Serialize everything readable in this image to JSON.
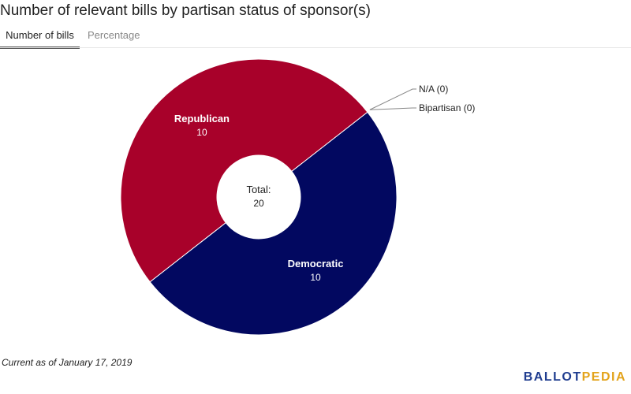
{
  "title": "Number of relevant bills by partisan status of sponsor(s)",
  "tabs": [
    {
      "label": "Number of bills",
      "active": true
    },
    {
      "label": "Percentage",
      "active": false
    }
  ],
  "footer_note": "Current as of January 17, 2019",
  "brand": {
    "part_a": "BALLOT",
    "part_b": "PEDIA",
    "color_a": "#1f3c8f",
    "color_b": "#e3a31b"
  },
  "chart_data": {
    "type": "pie",
    "title": "Number of relevant bills by partisan status of sponsor(s)",
    "center_label": "Total:",
    "total": 20,
    "slices": [
      {
        "name": "Democratic",
        "value": 10,
        "color": "#020860"
      },
      {
        "name": "Republican",
        "value": 10,
        "color": "#a8012a"
      },
      {
        "name": "N/A",
        "value": 0,
        "color": "#888888"
      },
      {
        "name": "Bipartisan",
        "value": 0,
        "color": "#888888"
      }
    ],
    "external_labels": [
      "N/A (0)",
      "Bipartisan (0)"
    ]
  }
}
